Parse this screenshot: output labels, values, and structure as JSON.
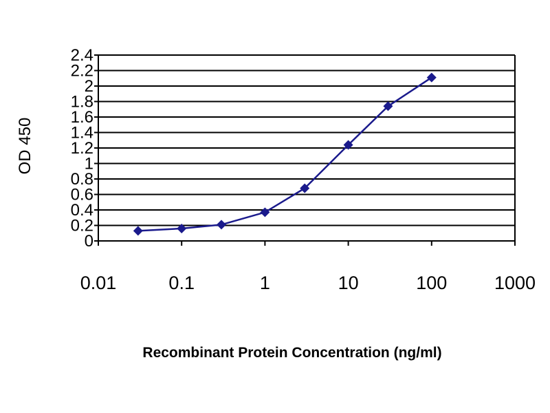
{
  "chart_data": {
    "type": "line",
    "title": "",
    "xlabel": "Recombinant Protein Concentration (ng/ml)",
    "ylabel": "OD 450",
    "xscale": "log",
    "xlim": [
      0.01,
      1000
    ],
    "ylim": [
      0,
      2.4
    ],
    "xticks": [
      0.01,
      0.1,
      1,
      10,
      100,
      1000
    ],
    "xtick_labels": [
      "0.01",
      "0.1",
      "1",
      "10",
      "100",
      "1000"
    ],
    "yticks": [
      0,
      0.2,
      0.4,
      0.6,
      0.8,
      1,
      1.2,
      1.4,
      1.6,
      1.8,
      2,
      2.2,
      2.4
    ],
    "ytick_labels": [
      "0",
      "0.2",
      "0.4",
      "0.6",
      "0.8",
      "1",
      "1.2",
      "1.4",
      "1.6",
      "1.8",
      "2",
      "2.2",
      "2.4"
    ],
    "grid": "horizontal",
    "legend": "none",
    "colors": {
      "series": "#1a1a8c",
      "grid": "#000000",
      "axis": "#000000"
    },
    "series": [
      {
        "x": [
          0.03,
          0.1,
          0.3,
          1,
          3,
          10,
          30,
          100
        ],
        "y": [
          0.13,
          0.16,
          0.21,
          0.37,
          0.68,
          1.24,
          1.74,
          2.11
        ]
      }
    ]
  }
}
